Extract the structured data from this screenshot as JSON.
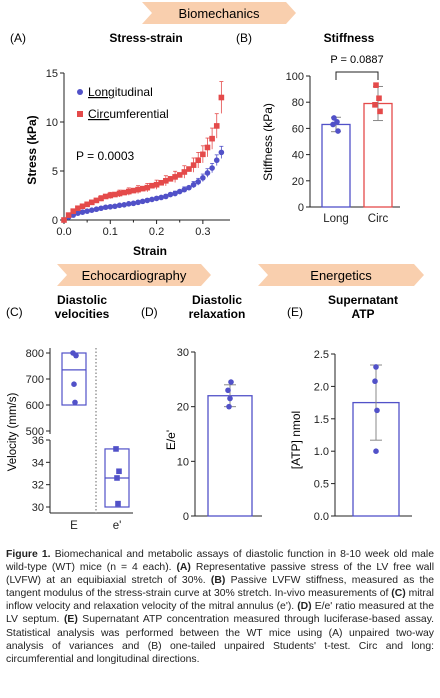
{
  "banners": {
    "biomechanics": "Biomechanics",
    "echocardiography": "Echocardiography",
    "energetics": "Energetics",
    "color": "#f9cfae"
  },
  "colors": {
    "blue": "#5151c8",
    "red": "#e44a4a",
    "axis": "#222222"
  },
  "chart_data": [
    {
      "panel": "(A)",
      "type": "scatter",
      "title": "Stress-strain",
      "xlabel": "Strain",
      "ylabel": "Stress (kPa)",
      "xlim": [
        0,
        0.35
      ],
      "ylim": [
        0,
        15
      ],
      "xticks": [
        "0.0",
        "0.1",
        "0.2",
        "0.3"
      ],
      "yticks": [
        "0",
        "5",
        "10",
        "15"
      ],
      "annotation": "P = 0.0003",
      "legend_position": "top-left",
      "series": [
        {
          "name": "Longitudinal",
          "name_underlined": "Long",
          "name_rest": "itudinal",
          "color": "#5151c8",
          "marker": "circle",
          "x": [
            0.0,
            0.01,
            0.02,
            0.03,
            0.04,
            0.05,
            0.06,
            0.07,
            0.08,
            0.09,
            0.1,
            0.11,
            0.12,
            0.13,
            0.14,
            0.15,
            0.16,
            0.17,
            0.18,
            0.19,
            0.2,
            0.21,
            0.22,
            0.23,
            0.24,
            0.25,
            0.26,
            0.27,
            0.28,
            0.29,
            0.3,
            0.31,
            0.32,
            0.33,
            0.34
          ],
          "y": [
            0.0,
            0.3,
            0.5,
            0.7,
            0.8,
            0.9,
            1.0,
            1.1,
            1.2,
            1.3,
            1.35,
            1.4,
            1.5,
            1.55,
            1.65,
            1.7,
            1.8,
            1.9,
            2.0,
            2.1,
            2.2,
            2.3,
            2.4,
            2.6,
            2.7,
            2.9,
            3.1,
            3.3,
            3.6,
            3.9,
            4.3,
            4.8,
            5.3,
            6.1,
            6.9
          ]
        },
        {
          "name": "Circumferential",
          "name_underlined": "Circ",
          "name_rest": "umferential",
          "color": "#e44a4a",
          "marker": "square",
          "x": [
            0.0,
            0.01,
            0.02,
            0.03,
            0.04,
            0.05,
            0.06,
            0.07,
            0.08,
            0.09,
            0.1,
            0.11,
            0.12,
            0.13,
            0.14,
            0.15,
            0.16,
            0.17,
            0.18,
            0.19,
            0.2,
            0.21,
            0.22,
            0.23,
            0.24,
            0.25,
            0.26,
            0.27,
            0.28,
            0.29,
            0.3,
            0.31,
            0.32,
            0.33,
            0.34
          ],
          "y": [
            0.0,
            0.5,
            0.9,
            1.2,
            1.4,
            1.6,
            1.8,
            2.0,
            2.2,
            2.4,
            2.5,
            2.6,
            2.7,
            2.8,
            2.9,
            3.0,
            3.1,
            3.2,
            3.3,
            3.5,
            3.6,
            3.8,
            4.0,
            4.2,
            4.4,
            4.6,
            4.9,
            5.2,
            5.6,
            6.1,
            6.7,
            7.4,
            8.3,
            9.6,
            12.5
          ]
        }
      ]
    },
    {
      "panel": "(B)",
      "type": "bar",
      "title": "Stiffness",
      "xlabel": "",
      "ylabel": "Stiffness (kPa)",
      "categories": [
        "Long",
        "Circ"
      ],
      "values": [
        63,
        79
      ],
      "sd": [
        5.5,
        13
      ],
      "points": [
        [
          68,
          65,
          63,
          58
        ],
        [
          93,
          83,
          78,
          73
        ]
      ],
      "ylim": [
        0,
        100
      ],
      "yticks": [
        "0",
        "20",
        "40",
        "60",
        "80",
        "100"
      ],
      "annotation": "P = 0.0887"
    },
    {
      "panel": "(C)",
      "type": "box",
      "title_line1": "Diastolic",
      "title_line2": "velocities",
      "ylabel": "Velocity (mm/s)",
      "categories": [
        "E",
        "e'"
      ],
      "upper_axis": {
        "ylim": [
          500,
          800
        ],
        "yticks": [
          "500",
          "600",
          "700",
          "800"
        ]
      },
      "lower_axis": {
        "ylim": [
          29,
          37
        ],
        "yticks": [
          "30",
          "32",
          "34",
          "36"
        ]
      },
      "boxes": [
        {
          "min": 600,
          "q1": 600,
          "median": 735,
          "q3": 800,
          "max": 800,
          "points": [
            800,
            790,
            680,
            610
          ]
        },
        {
          "min": 30,
          "q1": 30,
          "median": 32.6,
          "q3": 35.2,
          "max": 35.2,
          "points": [
            35.2,
            33.2,
            32.6,
            30.3
          ]
        }
      ]
    },
    {
      "panel": "(D)",
      "type": "bar",
      "title_line1": "Diastolic",
      "title_line2": "relaxation",
      "ylabel": "E/e'",
      "categories": [
        ""
      ],
      "values": [
        22
      ],
      "sd": [
        2
      ],
      "points": [
        [
          24.5,
          23,
          21.5,
          20
        ]
      ],
      "ylim": [
        0,
        30
      ],
      "yticks": [
        "0",
        "10",
        "20",
        "30"
      ]
    },
    {
      "panel": "(E)",
      "type": "bar",
      "title_line1": "Supernatant",
      "title_line2": "ATP",
      "ylabel": "[ATP] nmol",
      "categories": [
        ""
      ],
      "values": [
        1.75
      ],
      "sd": [
        0.58
      ],
      "points": [
        [
          2.3,
          2.08,
          1.63,
          1.0
        ]
      ],
      "ylim": [
        0,
        2.5
      ],
      "yticks": [
        "0.0",
        "0.5",
        "1.0",
        "1.5",
        "2.0",
        "2.5"
      ]
    }
  ],
  "caption": {
    "s1": "Figure 1.",
    "t1": " Biomechanical and metabolic assays of diastolic function in 8-10 week old male wild-type (WT) mice (n = 4 each). ",
    "s2": "(A)",
    "t2": " Representative passive stress of the LV free wall (LVFW) at an equibiaxial stretch of 30%. ",
    "s3": "(B)",
    "t3": " Passive LVFW stiffness, measured as the tangent modulus of the stress-strain curve at 30% stretch. In-vivo measurements of ",
    "s4": "(C)",
    "t4": " mitral inflow velocity and relaxation velocity of the mitral annulus (e'). ",
    "s5": "(D)",
    "t5": " E/e' ratio measured at the LV septum. ",
    "s6": "(E)",
    "t6": " Supernatant ATP concentration measured through luciferase-based assay. Statistical analysis was performed between the WT mice using (A) unpaired two-way analysis of variances and (B) one-tailed unpaired Students' t-test. Circ and long: circumferential and longitudinal directions."
  }
}
